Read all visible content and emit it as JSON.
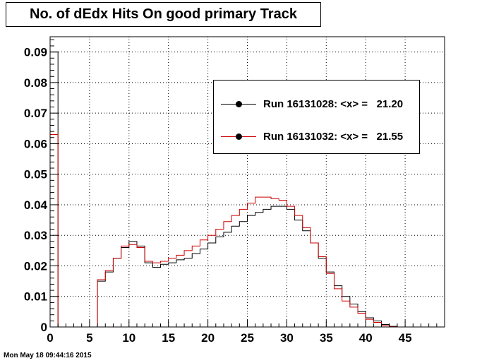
{
  "chart_data": {
    "type": "step",
    "title": "No. of dEdx Hits On good primary Track",
    "xlim": [
      0,
      50
    ],
    "ylim": [
      0,
      0.095
    ],
    "x_ticks": [
      0,
      5,
      10,
      15,
      20,
      25,
      30,
      35,
      40,
      45
    ],
    "x_tick_labels": [
      "0",
      "5",
      "10",
      "15",
      "20",
      "25",
      "30",
      "35",
      "40",
      "45"
    ],
    "y_ticks": [
      0,
      0.01,
      0.02,
      0.03,
      0.04,
      0.05,
      0.06,
      0.07,
      0.08,
      0.09
    ],
    "y_tick_labels": [
      "0",
      "0.01",
      "0.02",
      "0.03",
      "0.04",
      "0.05",
      "0.06",
      "0.07",
      "0.08",
      "0.09"
    ],
    "grid": true,
    "bin_edges": [
      0,
      1,
      2,
      3,
      4,
      5,
      6,
      7,
      8,
      9,
      10,
      11,
      12,
      13,
      14,
      15,
      16,
      17,
      18,
      19,
      20,
      21,
      22,
      23,
      24,
      25,
      26,
      27,
      28,
      29,
      30,
      31,
      32,
      33,
      34,
      35,
      36,
      37,
      38,
      39,
      40,
      41,
      42,
      43,
      44,
      45,
      46,
      47,
      48,
      49,
      50
    ],
    "series": [
      {
        "name": "Run 16131028",
        "color": "#000000",
        "values": [
          0.09,
          0,
          0,
          0,
          0,
          0,
          0.015,
          0.018,
          0.0225,
          0.026,
          0.028,
          0.0265,
          0.021,
          0.0195,
          0.0205,
          0.021,
          0.022,
          0.0225,
          0.024,
          0.0255,
          0.0275,
          0.0295,
          0.031,
          0.033,
          0.0345,
          0.0365,
          0.0375,
          0.0385,
          0.0395,
          0.0395,
          0.0385,
          0.035,
          0.0315,
          0.0275,
          0.0225,
          0.018,
          0.0135,
          0.01,
          0.0075,
          0.005,
          0.003,
          0.002,
          0.0008,
          0.0002,
          0,
          0,
          0,
          0,
          0,
          0
        ]
      },
      {
        "name": "Run 16131032",
        "color": "#cc0000",
        "values": [
          0.063,
          0,
          0,
          0,
          0,
          0,
          0.0155,
          0.0185,
          0.0225,
          0.0265,
          0.027,
          0.026,
          0.0215,
          0.021,
          0.0215,
          0.0225,
          0.0235,
          0.025,
          0.0265,
          0.0285,
          0.03,
          0.032,
          0.0345,
          0.0365,
          0.0385,
          0.0405,
          0.0425,
          0.0425,
          0.042,
          0.0415,
          0.0395,
          0.0365,
          0.0325,
          0.0275,
          0.023,
          0.0175,
          0.0125,
          0.0085,
          0.0065,
          0.0045,
          0.0025,
          0.0015,
          0.0005,
          0.0001,
          0,
          0,
          0,
          0,
          0,
          0
        ]
      }
    ],
    "legend": {
      "placement": "top-right",
      "entries": [
        {
          "label": "Run 16131028: <x> =   21.20",
          "color": "#000000"
        },
        {
          "label": "Run 16131032: <x> =   21.55",
          "color": "#cc0000"
        }
      ]
    }
  },
  "footer": {
    "timestamp": "Mon May 18 09:44:16 2015"
  }
}
